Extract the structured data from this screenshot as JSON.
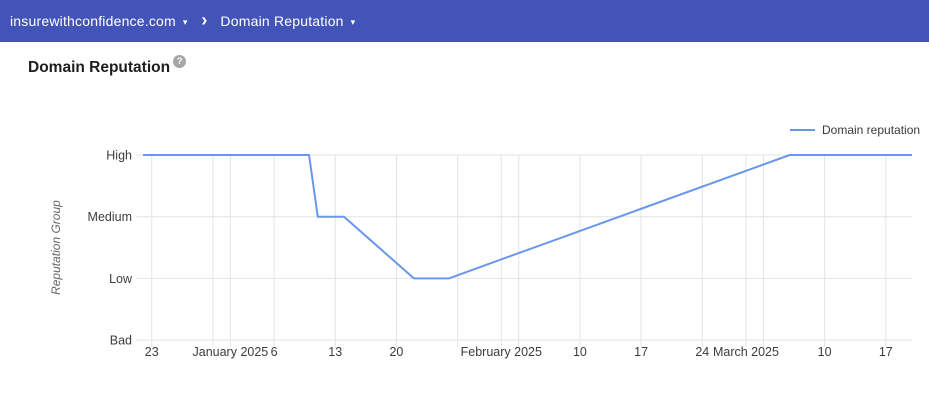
{
  "header": {
    "domain_label": "insurewithconfidence.com",
    "report_label": "Domain Reputation",
    "bg_color": "#4354b8"
  },
  "icons": {
    "caret_down": "▾",
    "chevron_right": "›",
    "help": "?"
  },
  "page": {
    "title": "Domain Reputation"
  },
  "chart_data": {
    "type": "line",
    "title": "",
    "xlabel": "",
    "ylabel": "Reputation Group",
    "y_categories": [
      "Bad",
      "Low",
      "Medium",
      "High"
    ],
    "grid": true,
    "legend": {
      "position": "top-right",
      "entries": [
        {
          "label": "Domain reputation",
          "color": "#6a97ee"
        }
      ]
    },
    "x_range": {
      "start": "2024-12-22",
      "end": "2025-03-20"
    },
    "x_gridlines": [
      "2024-12-23",
      "2024-12-30",
      "2025-01-01",
      "2025-01-06",
      "2025-01-13",
      "2025-01-20",
      "2025-01-27",
      "2025-02-01",
      "2025-02-03",
      "2025-02-10",
      "2025-02-17",
      "2025-02-24",
      "2025-03-01",
      "2025-03-03",
      "2025-03-10",
      "2025-03-17"
    ],
    "x_ticks": [
      {
        "date": "2024-12-23",
        "label": "23"
      },
      {
        "date": "2025-01-01",
        "label": "January 2025"
      },
      {
        "date": "2025-01-06",
        "label": "6"
      },
      {
        "date": "2025-01-13",
        "label": "13"
      },
      {
        "date": "2025-01-20",
        "label": "20"
      },
      {
        "date": "2025-02-01",
        "label": "February 2025"
      },
      {
        "date": "2025-02-10",
        "label": "10"
      },
      {
        "date": "2025-02-17",
        "label": "17"
      },
      {
        "date": "2025-02-24",
        "label": "24"
      },
      {
        "date": "2025-03-01",
        "label": "March 2025"
      },
      {
        "date": "2025-03-10",
        "label": "10"
      },
      {
        "date": "2025-03-17",
        "label": "17"
      }
    ],
    "series": [
      {
        "name": "Domain reputation",
        "color": "#6a97ee",
        "points": [
          {
            "date": "2024-12-22",
            "value": "High"
          },
          {
            "date": "2025-01-10",
            "value": "High"
          },
          {
            "date": "2025-01-11",
            "value": "Medium"
          },
          {
            "date": "2025-01-14",
            "value": "Medium"
          },
          {
            "date": "2025-01-22",
            "value": "Low"
          },
          {
            "date": "2025-01-26",
            "value": "Low"
          },
          {
            "date": "2025-03-06",
            "value": "High"
          },
          {
            "date": "2025-03-20",
            "value": "High"
          }
        ]
      }
    ]
  }
}
